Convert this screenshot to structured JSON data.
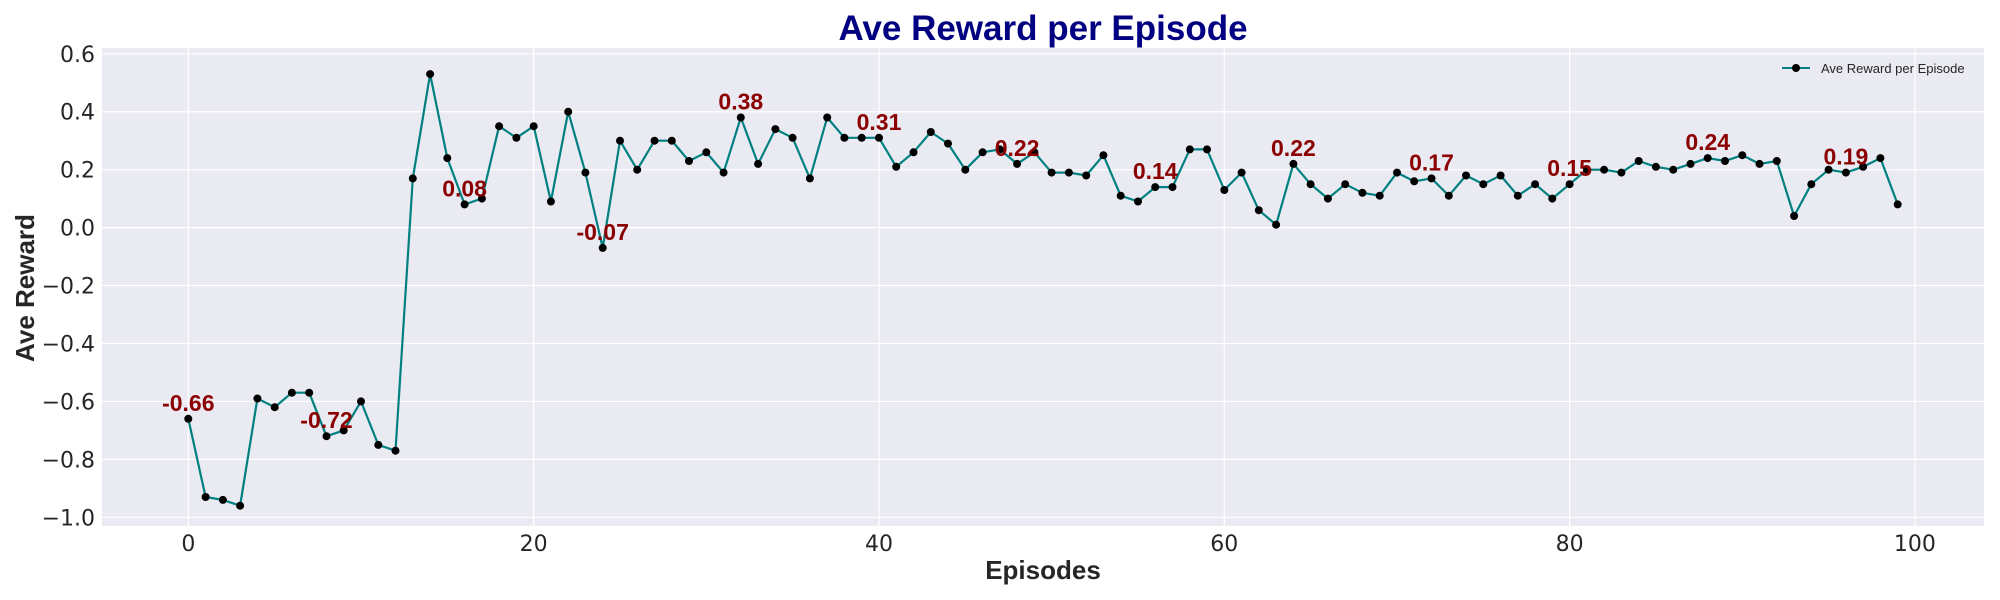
{
  "chart_data": {
    "type": "line",
    "title": "Ave Reward per Episode",
    "xlabel": "Episodes",
    "ylabel": "Ave Reward",
    "xlim": [
      -5,
      104
    ],
    "ylim": [
      -1.03,
      0.62
    ],
    "xticks": [
      0,
      20,
      40,
      60,
      80,
      100
    ],
    "yticks": [
      -1.0,
      -0.8,
      -0.6,
      -0.4,
      -0.2,
      0.0,
      0.2,
      0.4,
      0.6
    ],
    "ytick_labels": [
      "−1.0",
      "−0.8",
      "−0.6",
      "−0.4",
      "−0.2",
      "0.0",
      "0.2",
      "0.4",
      "0.6"
    ],
    "grid": true,
    "legend_position": "top-right",
    "series": [
      {
        "name": "Ave Reward per Episode",
        "color": "#008080",
        "marker_color": "#000000",
        "x": [
          0,
          1,
          2,
          3,
          4,
          5,
          6,
          7,
          8,
          9,
          10,
          11,
          12,
          13,
          14,
          15,
          16,
          17,
          18,
          19,
          20,
          21,
          22,
          23,
          24,
          25,
          26,
          27,
          28,
          29,
          30,
          31,
          32,
          33,
          34,
          35,
          36,
          37,
          38,
          39,
          40,
          41,
          42,
          43,
          44,
          45,
          46,
          47,
          48,
          49,
          50,
          51,
          52,
          53,
          54,
          55,
          56,
          57,
          58,
          59,
          60,
          61,
          62,
          63,
          64,
          65,
          66,
          67,
          68,
          69,
          70,
          71,
          72,
          73,
          74,
          75,
          76,
          77,
          78,
          79,
          80,
          81,
          82,
          83,
          84,
          85,
          86,
          87,
          88,
          89,
          90,
          91,
          92,
          93,
          94,
          95,
          96,
          97,
          98,
          99
        ],
        "y": [
          -0.66,
          -0.93,
          -0.94,
          -0.96,
          -0.59,
          -0.62,
          -0.57,
          -0.57,
          -0.72,
          -0.7,
          -0.6,
          -0.75,
          -0.77,
          0.17,
          0.53,
          0.24,
          0.08,
          0.1,
          0.35,
          0.31,
          0.35,
          0.09,
          0.4,
          0.19,
          -0.07,
          0.3,
          0.2,
          0.3,
          0.3,
          0.23,
          0.26,
          0.19,
          0.38,
          0.22,
          0.34,
          0.31,
          0.17,
          0.38,
          0.31,
          0.31,
          0.31,
          0.21,
          0.26,
          0.33,
          0.29,
          0.2,
          0.26,
          0.27,
          0.22,
          0.26,
          0.19,
          0.19,
          0.18,
          0.25,
          0.11,
          0.09,
          0.14,
          0.14,
          0.27,
          0.27,
          0.13,
          0.19,
          0.06,
          0.01,
          0.22,
          0.15,
          0.1,
          0.15,
          0.12,
          0.11,
          0.19,
          0.16,
          0.17,
          0.11,
          0.18,
          0.15,
          0.18,
          0.11,
          0.15,
          0.1,
          0.15,
          0.2,
          0.2,
          0.19,
          0.23,
          0.21,
          0.2,
          0.22,
          0.24,
          0.23,
          0.25,
          0.22,
          0.23,
          0.04,
          0.15,
          0.2,
          0.19,
          0.21,
          0.24,
          0.08
        ]
      }
    ],
    "annotations": [
      {
        "x": 0,
        "y": -0.66,
        "text": "-0.66"
      },
      {
        "x": 8,
        "y": -0.72,
        "text": "-0.72"
      },
      {
        "x": 16,
        "y": 0.08,
        "text": "0.08"
      },
      {
        "x": 24,
        "y": -0.07,
        "text": "-0.07"
      },
      {
        "x": 32,
        "y": 0.38,
        "text": "0.38"
      },
      {
        "x": 40,
        "y": 0.31,
        "text": "0.31"
      },
      {
        "x": 48,
        "y": 0.22,
        "text": "0.22"
      },
      {
        "x": 56,
        "y": 0.14,
        "text": "0.14"
      },
      {
        "x": 64,
        "y": 0.22,
        "text": "0.22"
      },
      {
        "x": 72,
        "y": 0.17,
        "text": "0.17"
      },
      {
        "x": 80,
        "y": 0.15,
        "text": "0.15"
      },
      {
        "x": 88,
        "y": 0.24,
        "text": "0.24"
      },
      {
        "x": 96,
        "y": 0.19,
        "text": "0.19"
      }
    ]
  }
}
